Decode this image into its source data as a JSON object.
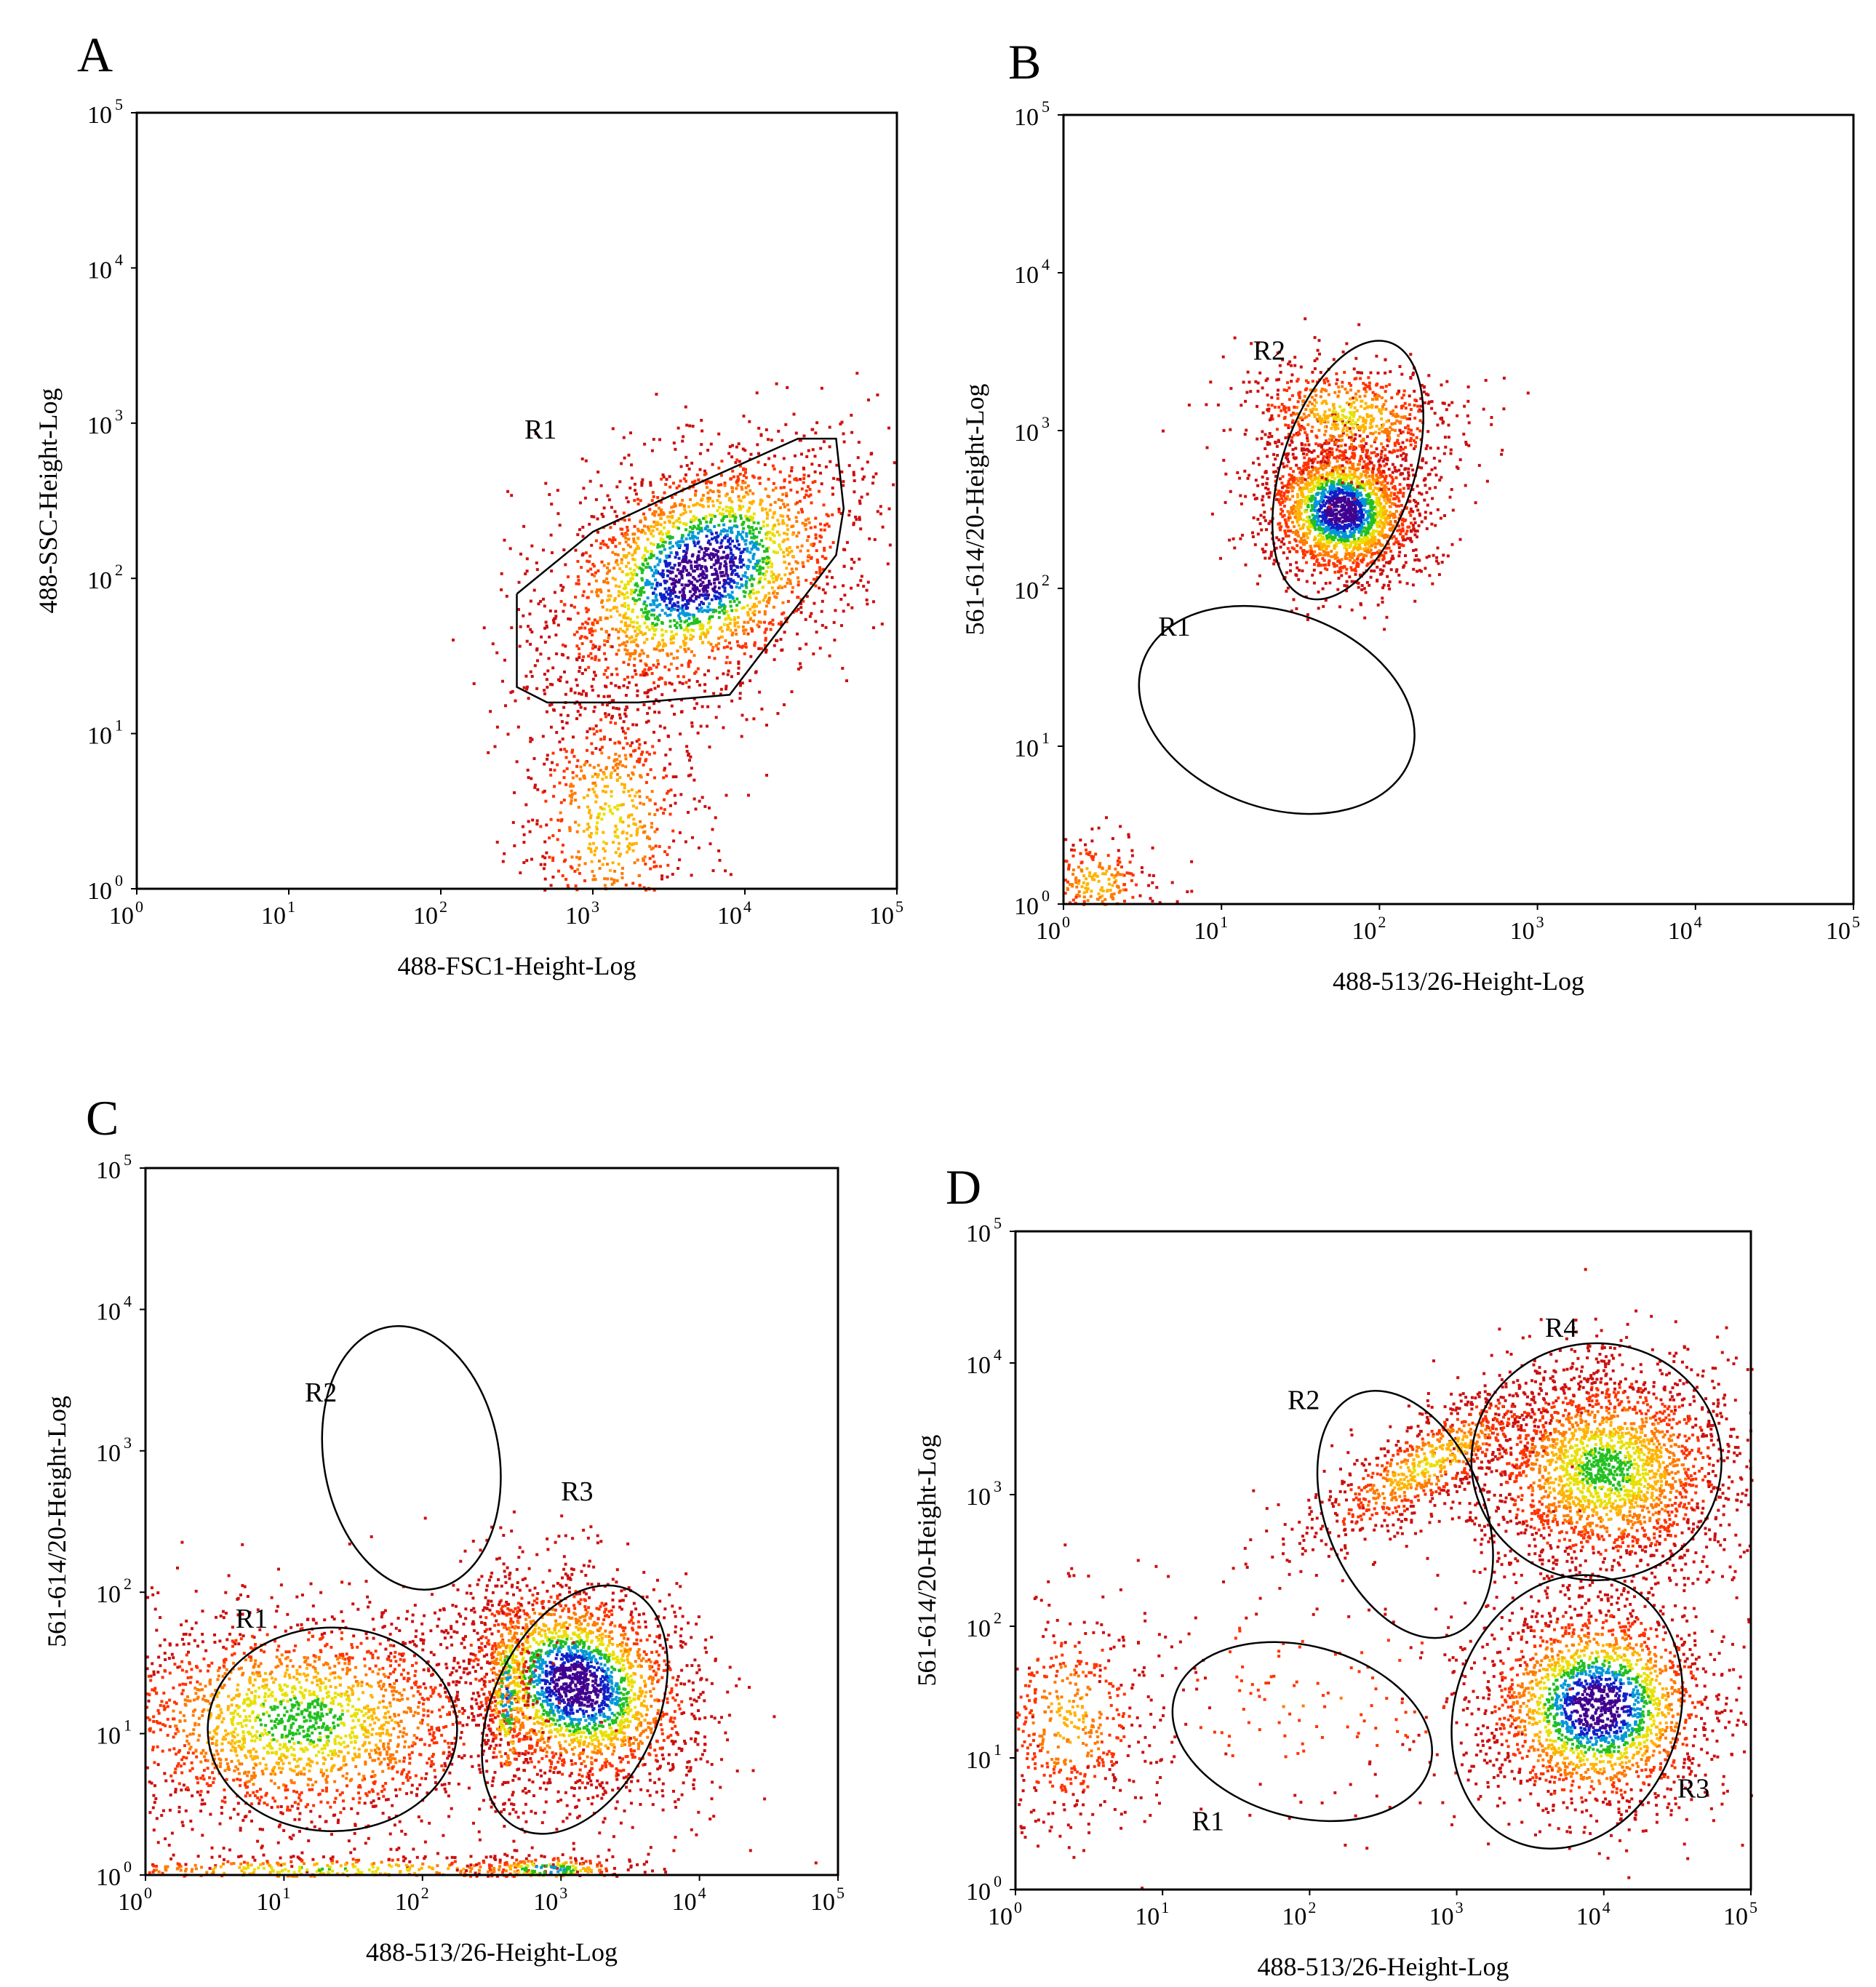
{
  "colors": {
    "density_scale": [
      "#cc1010",
      "#ff3300",
      "#ff7a00",
      "#ffb300",
      "#e8e000",
      "#22c020",
      "#0098d8",
      "#1020c8",
      "#400090"
    ],
    "gate_stroke": "#000000"
  },
  "chart_data": [
    {
      "panel": "A",
      "type": "scatter",
      "subtype": "flow-cytometry-density",
      "xlabel": "488-FSC1-Height-Log",
      "ylabel": "488-SSC-Height-Log",
      "x_scale": "log10",
      "y_scale": "log10",
      "xlim": [
        1,
        100000
      ],
      "ylim": [
        1,
        100000
      ],
      "x_ticks": [
        {
          "base": "10",
          "exp": "0"
        },
        {
          "base": "10",
          "exp": "1"
        },
        {
          "base": "10",
          "exp": "2"
        },
        {
          "base": "10",
          "exp": "3"
        },
        {
          "base": "10",
          "exp": "4"
        },
        {
          "base": "10",
          "exp": "5"
        }
      ],
      "y_ticks": [
        {
          "base": "10",
          "exp": "0"
        },
        {
          "base": "10",
          "exp": "1"
        },
        {
          "base": "10",
          "exp": "2"
        },
        {
          "base": "10",
          "exp": "3"
        },
        {
          "base": "10",
          "exp": "4"
        },
        {
          "base": "10",
          "exp": "5"
        }
      ],
      "populations": [
        {
          "center_log": [
            3.7,
            2.05
          ],
          "spread_log": [
            0.55,
            0.35
          ],
          "tilt_deg": 30,
          "n": 2600,
          "peak": 1.0
        },
        {
          "center_log": [
            3.1,
            0.45
          ],
          "spread_log": [
            0.3,
            0.45
          ],
          "tilt_deg": 0,
          "n": 700,
          "peak": 0.45
        }
      ],
      "gates": [
        {
          "name": "R1",
          "shape": "polygon",
          "points_log": [
            [
              2.5,
              1.9
            ],
            [
              2.5,
              1.3
            ],
            [
              2.7,
              1.2
            ],
            [
              3.3,
              1.2
            ],
            [
              3.9,
              1.25
            ],
            [
              4.6,
              2.15
            ],
            [
              4.65,
              2.45
            ],
            [
              4.6,
              2.9
            ],
            [
              4.35,
              2.9
            ],
            [
              3.55,
              2.55
            ],
            [
              3.0,
              2.3
            ],
            [
              2.5,
              1.9
            ]
          ],
          "label": "R1",
          "label_log": [
            2.55,
            2.9
          ]
        }
      ]
    },
    {
      "panel": "B",
      "type": "scatter",
      "subtype": "flow-cytometry-density",
      "xlabel": "488-513/26-Height-Log",
      "ylabel": "561-614/20-Height-Log",
      "x_scale": "log10",
      "y_scale": "log10",
      "xlim": [
        1,
        100000
      ],
      "ylim": [
        1,
        100000
      ],
      "x_ticks": [
        {
          "base": "10",
          "exp": "0"
        },
        {
          "base": "10",
          "exp": "1"
        },
        {
          "base": "10",
          "exp": "2"
        },
        {
          "base": "10",
          "exp": "3"
        },
        {
          "base": "10",
          "exp": "4"
        },
        {
          "base": "10",
          "exp": "5"
        }
      ],
      "y_ticks": [
        {
          "base": "10",
          "exp": "0"
        },
        {
          "base": "10",
          "exp": "1"
        },
        {
          "base": "10",
          "exp": "2"
        },
        {
          "base": "10",
          "exp": "3"
        },
        {
          "base": "10",
          "exp": "4"
        },
        {
          "base": "10",
          "exp": "5"
        }
      ],
      "populations": [
        {
          "center_log": [
            1.75,
            2.5
          ],
          "spread_log": [
            0.22,
            0.25
          ],
          "tilt_deg": 70,
          "n": 2200,
          "peak": 1.0
        },
        {
          "center_log": [
            1.8,
            3.1
          ],
          "spread_log": [
            0.18,
            0.35
          ],
          "tilt_deg": 80,
          "n": 700,
          "peak": 0.45
        },
        {
          "center_log": [
            0.2,
            0.15
          ],
          "spread_log": [
            0.2,
            0.15
          ],
          "tilt_deg": 0,
          "n": 250,
          "peak": 0.4
        }
      ],
      "gates": [
        {
          "name": "R2",
          "shape": "ellipse",
          "center_log": [
            1.8,
            2.75
          ],
          "radius_log": [
            0.85,
            0.42
          ],
          "rotation_deg": 72,
          "label": "R2",
          "label_log": [
            1.2,
            3.45
          ]
        },
        {
          "name": "R1",
          "shape": "ellipse",
          "center_log": [
            1.35,
            1.23
          ],
          "radius_log": [
            0.9,
            0.62
          ],
          "rotation_deg": -20,
          "label": "R1",
          "label_log": [
            0.6,
            1.7
          ]
        }
      ]
    },
    {
      "panel": "C",
      "type": "scatter",
      "subtype": "flow-cytometry-density",
      "xlabel": "488-513/26-Height-Log",
      "ylabel": "561-614/20-Height-Log",
      "x_scale": "log10",
      "y_scale": "log10",
      "xlim": [
        1,
        100000
      ],
      "ylim": [
        1,
        100000
      ],
      "x_ticks": [
        {
          "base": "10",
          "exp": "0"
        },
        {
          "base": "10",
          "exp": "1"
        },
        {
          "base": "10",
          "exp": "2"
        },
        {
          "base": "10",
          "exp": "3"
        },
        {
          "base": "10",
          "exp": "4"
        },
        {
          "base": "10",
          "exp": "5"
        }
      ],
      "y_ticks": [
        {
          "base": "10",
          "exp": "0"
        },
        {
          "base": "10",
          "exp": "1"
        },
        {
          "base": "10",
          "exp": "2"
        },
        {
          "base": "10",
          "exp": "3"
        },
        {
          "base": "10",
          "exp": "4"
        },
        {
          "base": "10",
          "exp": "5"
        }
      ],
      "populations": [
        {
          "center_log": [
            3.1,
            1.35
          ],
          "spread_log": [
            0.35,
            0.45
          ],
          "tilt_deg": 60,
          "n": 2600,
          "peak": 1.0
        },
        {
          "center_log": [
            1.1,
            1.1
          ],
          "spread_log": [
            0.75,
            0.4
          ],
          "tilt_deg": 0,
          "n": 2200,
          "peak": 0.6
        },
        {
          "center_log": [
            2.6,
            1.3
          ],
          "spread_log": [
            0.08,
            0.4
          ],
          "tilt_deg": 0,
          "n": 300,
          "peak": 0.75
        },
        {
          "center_log": [
            1.3,
            0.05
          ],
          "spread_log": [
            1.1,
            0.05
          ],
          "tilt_deg": 0,
          "n": 400,
          "peak": 0.55
        },
        {
          "center_log": [
            2.9,
            0.05
          ],
          "spread_log": [
            0.3,
            0.05
          ],
          "tilt_deg": 0,
          "n": 200,
          "peak": 0.75
        }
      ],
      "gates": [
        {
          "name": "R2",
          "shape": "ellipse",
          "center_log": [
            1.92,
            2.95
          ],
          "radius_log": [
            0.96,
            0.62
          ],
          "rotation_deg": -80,
          "label": "R2",
          "label_log": [
            1.15,
            3.35
          ]
        },
        {
          "name": "R1",
          "shape": "ellipse",
          "center_log": [
            1.35,
            1.03
          ],
          "radius_log": [
            0.9,
            0.72
          ],
          "rotation_deg": 0,
          "label": "R1",
          "label_log": [
            0.65,
            1.75
          ]
        },
        {
          "name": "R3",
          "shape": "ellipse",
          "center_log": [
            3.1,
            1.17
          ],
          "radius_log": [
            0.95,
            0.58
          ],
          "rotation_deg": 65,
          "label": "R3",
          "label_log": [
            3.0,
            2.65
          ]
        }
      ]
    },
    {
      "panel": "D",
      "type": "scatter",
      "subtype": "flow-cytometry-density",
      "xlabel": "488-513/26-Height-Log",
      "ylabel": "561-614/20-Height-Log",
      "x_scale": "log10",
      "y_scale": "log10",
      "xlim": [
        1,
        100000
      ],
      "ylim": [
        1,
        100000
      ],
      "x_ticks": [
        {
          "base": "10",
          "exp": "0"
        },
        {
          "base": "10",
          "exp": "1"
        },
        {
          "base": "10",
          "exp": "2"
        },
        {
          "base": "10",
          "exp": "3"
        },
        {
          "base": "10",
          "exp": "4"
        },
        {
          "base": "10",
          "exp": "5"
        }
      ],
      "y_ticks": [
        {
          "base": "10",
          "exp": "0"
        },
        {
          "base": "10",
          "exp": "1"
        },
        {
          "base": "10",
          "exp": "2"
        },
        {
          "base": "10",
          "exp": "3"
        },
        {
          "base": "10",
          "exp": "4"
        },
        {
          "base": "10",
          "exp": "5"
        }
      ],
      "populations": [
        {
          "center_log": [
            4.0,
            3.2
          ],
          "spread_log": [
            0.45,
            0.4
          ],
          "tilt_deg": 0,
          "n": 2400,
          "peak": 0.6
        },
        {
          "center_log": [
            3.95,
            1.4
          ],
          "spread_log": [
            0.4,
            0.4
          ],
          "tilt_deg": 20,
          "n": 2200,
          "peak": 1.0
        },
        {
          "center_log": [
            2.8,
            3.25
          ],
          "spread_log": [
            0.5,
            0.15
          ],
          "tilt_deg": 35,
          "n": 800,
          "peak": 0.45
        },
        {
          "center_log": [
            0.35,
            1.3
          ],
          "spread_log": [
            0.3,
            0.45
          ],
          "tilt_deg": 0,
          "n": 500,
          "peak": 0.35
        },
        {
          "center_log": [
            2.0,
            1.5
          ],
          "spread_log": [
            0.8,
            0.6
          ],
          "tilt_deg": 0,
          "n": 180,
          "peak": 0.2
        }
      ],
      "gates": [
        {
          "name": "R2",
          "shape": "ellipse",
          "center_log": [
            2.65,
            2.85
          ],
          "radius_log": [
            0.88,
            0.6
          ],
          "rotation_deg": -68,
          "label": "R2",
          "label_log": [
            1.85,
            3.65
          ]
        },
        {
          "name": "R4",
          "shape": "ellipse",
          "center_log": [
            3.95,
            3.25
          ],
          "radius_log": [
            0.85,
            0.9
          ],
          "rotation_deg": 0,
          "label": "R4",
          "label_log": [
            3.6,
            4.2
          ]
        },
        {
          "name": "R1",
          "shape": "ellipse",
          "center_log": [
            1.95,
            1.2
          ],
          "radius_log": [
            0.9,
            0.65
          ],
          "rotation_deg": -15,
          "label": "R1",
          "label_log": [
            1.2,
            0.45
          ]
        },
        {
          "name": "R3",
          "shape": "ellipse",
          "center_log": [
            3.75,
            1.35
          ],
          "radius_log": [
            0.95,
            0.85
          ],
          "rotation_deg": 70,
          "label": "R3",
          "label_log": [
            4.5,
            0.7
          ]
        }
      ]
    }
  ]
}
